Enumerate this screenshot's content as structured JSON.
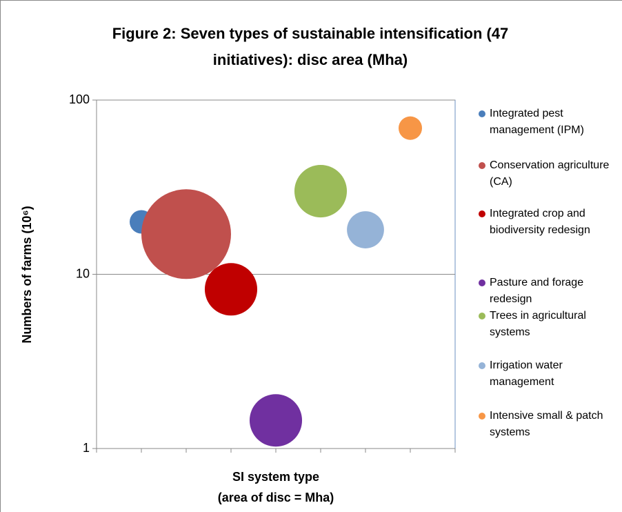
{
  "chart_data": {
    "type": "bubble",
    "title": "Figure 2: Seven types of sustainable intensification (47 initiatives): disc area (Mha)",
    "xlabel": [
      "SI system type",
      "(area of disc = Mha)"
    ],
    "ylabel": "Numbers of farms (10⁶)",
    "ylim": [
      1,
      100
    ],
    "yticks": [
      1,
      10,
      100
    ],
    "log_y": true,
    "grid": true,
    "legend": "right",
    "series": [
      {
        "name": "Integrated pest management (IPM)",
        "color": "#4a7ebb",
        "values": [
          20
        ],
        "sizes": [
          10
        ]
      },
      {
        "name": "Conservation agriculture (CA)",
        "color": "#c0504d",
        "values": [
          17
        ],
        "sizes": [
          146
        ]
      },
      {
        "name": "Integrated crop and biodiversity redesign",
        "color": "#c00000",
        "values": [
          8.2
        ],
        "sizes": [
          50
        ]
      },
      {
        "name": "Pasture and forage redesign",
        "color": "#7030a0",
        "values": [
          1.45
        ],
        "sizes": [
          50
        ]
      },
      {
        "name": "Trees in agricultural systems",
        "color": "#9bbb59",
        "values": [
          30
        ],
        "sizes": [
          50
        ]
      },
      {
        "name": "Irrigation water management",
        "color": "#95b3d7",
        "values": [
          18
        ],
        "sizes": [
          25
        ]
      },
      {
        "name": "Intensive small & patch systems",
        "color": "#f79646",
        "values": [
          69
        ],
        "sizes": [
          10
        ]
      }
    ]
  }
}
